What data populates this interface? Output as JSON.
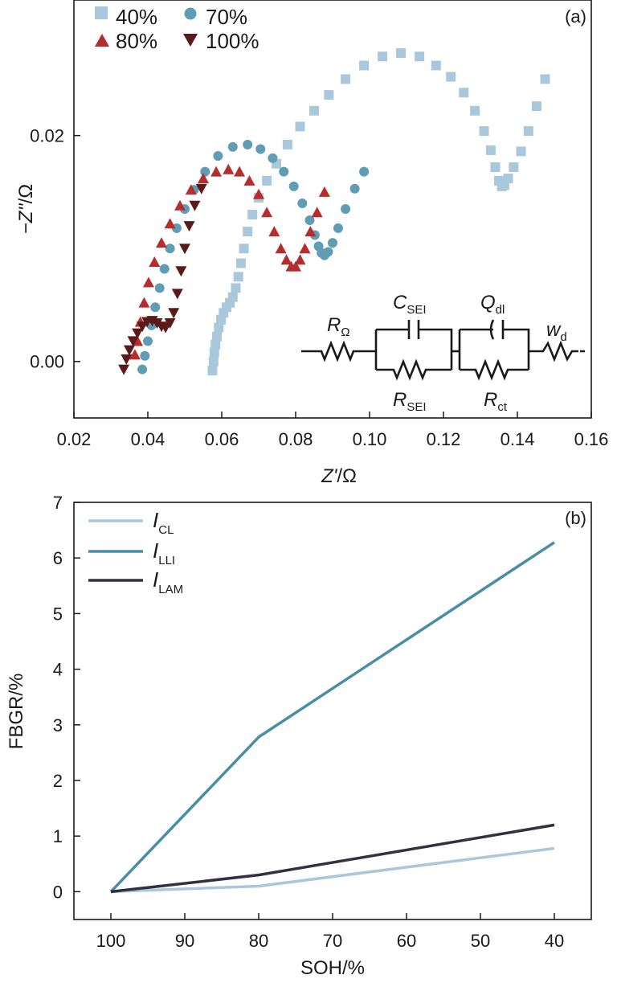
{
  "chart_data": [
    {
      "id": "a",
      "type": "scatter",
      "panel_label": "(a)",
      "xlabel_main": "Z'",
      "xlabel_unit": "/Ω",
      "ylabel_main": "−Z''",
      "ylabel_unit": "/Ω",
      "xlim": [
        0.02,
        0.16
      ],
      "ylim": [
        -0.005,
        0.032
      ],
      "xticks": [
        0.02,
        0.04,
        0.06,
        0.08,
        0.1,
        0.12,
        0.14,
        0.16
      ],
      "xtick_labels": [
        "0.02",
        "0.04",
        "0.06",
        "0.08",
        "0.10",
        "0.12",
        "0.14",
        "0.16"
      ],
      "yticks": [
        0.0,
        0.02
      ],
      "ytick_labels": [
        "0.00",
        "0.02"
      ],
      "legend_placement": "top-left",
      "series": [
        {
          "name": "40%",
          "marker": "square",
          "color": "#a9c8dc",
          "points": [
            [
              0.0575,
              -0.0008
            ],
            [
              0.0578,
              0.0
            ],
            [
              0.058,
              0.0008
            ],
            [
              0.0583,
              0.0015
            ],
            [
              0.0587,
              0.0022
            ],
            [
              0.0592,
              0.003
            ],
            [
              0.0598,
              0.0037
            ],
            [
              0.0605,
              0.0043
            ],
            [
              0.0613,
              0.0048
            ],
            [
              0.0622,
              0.0052
            ],
            [
              0.063,
              0.0057
            ],
            [
              0.0638,
              0.0065
            ],
            [
              0.0645,
              0.0075
            ],
            [
              0.0652,
              0.0087
            ],
            [
              0.066,
              0.01
            ],
            [
              0.067,
              0.0115
            ],
            [
              0.0683,
              0.013
            ],
            [
              0.07,
              0.0145
            ],
            [
              0.0722,
              0.016
            ],
            [
              0.0748,
              0.0175
            ],
            [
              0.0778,
              0.0192
            ],
            [
              0.0812,
              0.0208
            ],
            [
              0.085,
              0.0222
            ],
            [
              0.089,
              0.0236
            ],
            [
              0.0935,
              0.025
            ],
            [
              0.0985,
              0.0262
            ],
            [
              0.1035,
              0.027
            ],
            [
              0.1085,
              0.0273
            ],
            [
              0.1135,
              0.027
            ],
            [
              0.118,
              0.0262
            ],
            [
              0.122,
              0.0252
            ],
            [
              0.1255,
              0.0238
            ],
            [
              0.1285,
              0.0222
            ],
            [
              0.131,
              0.0204
            ],
            [
              0.1328,
              0.0187
            ],
            [
              0.134,
              0.0172
            ],
            [
              0.135,
              0.016
            ],
            [
              0.1358,
              0.0155
            ],
            [
              0.1365,
              0.0156
            ],
            [
              0.1375,
              0.0162
            ],
            [
              0.139,
              0.0172
            ],
            [
              0.141,
              0.0186
            ],
            [
              0.143,
              0.0204
            ],
            [
              0.1452,
              0.0226
            ],
            [
              0.1475,
              0.025
            ]
          ]
        },
        {
          "name": "70%",
          "marker": "circle",
          "color": "#5f9db5",
          "points": [
            [
              0.0385,
              -0.0007
            ],
            [
              0.0392,
              0.0005
            ],
            [
              0.04,
              0.0018
            ],
            [
              0.041,
              0.0032
            ],
            [
              0.042,
              0.0048
            ],
            [
              0.0432,
              0.0065
            ],
            [
              0.0445,
              0.0082
            ],
            [
              0.046,
              0.01
            ],
            [
              0.0478,
              0.0118
            ],
            [
              0.05,
              0.0135
            ],
            [
              0.0525,
              0.0152
            ],
            [
              0.0555,
              0.0168
            ],
            [
              0.059,
              0.0182
            ],
            [
              0.063,
              0.019
            ],
            [
              0.067,
              0.0192
            ],
            [
              0.0705,
              0.0188
            ],
            [
              0.0738,
              0.018
            ],
            [
              0.0768,
              0.0168
            ],
            [
              0.0795,
              0.0155
            ],
            [
              0.0818,
              0.014
            ],
            [
              0.0838,
              0.0125
            ],
            [
              0.0852,
              0.0112
            ],
            [
              0.0862,
              0.0102
            ],
            [
              0.087,
              0.0096
            ],
            [
              0.0878,
              0.0094
            ],
            [
              0.0888,
              0.0097
            ],
            [
              0.09,
              0.0105
            ],
            [
              0.0915,
              0.0118
            ],
            [
              0.0935,
              0.0135
            ],
            [
              0.096,
              0.0153
            ],
            [
              0.0985,
              0.0168
            ]
          ]
        },
        {
          "name": "80%",
          "marker": "triangle-up",
          "color": "#b52d2d",
          "points": [
            [
              0.0365,
              0.0006
            ],
            [
              0.0372,
              0.0018
            ],
            [
              0.038,
              0.0035
            ],
            [
              0.039,
              0.0052
            ],
            [
              0.0402,
              0.007
            ],
            [
              0.0418,
              0.0088
            ],
            [
              0.0437,
              0.0105
            ],
            [
              0.046,
              0.0122
            ],
            [
              0.0487,
              0.0138
            ],
            [
              0.0517,
              0.0152
            ],
            [
              0.055,
              0.0162
            ],
            [
              0.0585,
              0.0168
            ],
            [
              0.0618,
              0.017
            ],
            [
              0.0648,
              0.0168
            ],
            [
              0.0675,
              0.016
            ],
            [
              0.07,
              0.0148
            ],
            [
              0.0722,
              0.0132
            ],
            [
              0.0742,
              0.0115
            ],
            [
              0.076,
              0.01
            ],
            [
              0.0775,
              0.009
            ],
            [
              0.0788,
              0.0084
            ],
            [
              0.08,
              0.0084
            ],
            [
              0.0812,
              0.009
            ],
            [
              0.0825,
              0.01
            ],
            [
              0.084,
              0.0115
            ],
            [
              0.0858,
              0.0132
            ],
            [
              0.0878,
              0.015
            ]
          ]
        },
        {
          "name": "100%",
          "marker": "triangle-down",
          "color": "#5a1a1a",
          "points": [
            [
              0.0335,
              -0.0007
            ],
            [
              0.0342,
              0.0002
            ],
            [
              0.035,
              0.001
            ],
            [
              0.036,
              0.0018
            ],
            [
              0.0372,
              0.0025
            ],
            [
              0.0385,
              0.0031
            ],
            [
              0.0398,
              0.0035
            ],
            [
              0.0412,
              0.0036
            ],
            [
              0.0425,
              0.0034
            ],
            [
              0.0437,
              0.0031
            ],
            [
              0.0448,
              0.003
            ],
            [
              0.046,
              0.0034
            ],
            [
              0.047,
              0.0043
            ],
            [
              0.048,
              0.006
            ],
            [
              0.049,
              0.008
            ],
            [
              0.05,
              0.01
            ],
            [
              0.0512,
              0.012
            ],
            [
              0.0527,
              0.0138
            ],
            [
              0.0545,
              0.0153
            ]
          ]
        }
      ],
      "circuit": {
        "r_omega": "Ω",
        "r_main": "R",
        "c_sei_main": "C",
        "c_sei_sub": "SEI",
        "q_dl_main": "Q",
        "q_dl_sub": "dl",
        "w_main": "w",
        "w_sub": "d",
        "r_sei_main": "R",
        "r_sei_sub": "SEI",
        "r_ct_main": "R",
        "r_ct_sub": "ct"
      }
    },
    {
      "id": "b",
      "type": "line",
      "panel_label": "(b)",
      "xlabel": "SOH/%",
      "ylabel": "FBGR/%",
      "xlim": [
        105,
        35
      ],
      "ylim": [
        -0.5,
        7
      ],
      "xticks": [
        100,
        90,
        80,
        70,
        60,
        50,
        40
      ],
      "xtick_labels": [
        "100",
        "90",
        "80",
        "70",
        "60",
        "50",
        "40"
      ],
      "yticks": [
        0,
        1,
        2,
        3,
        4,
        5,
        6,
        7
      ],
      "ytick_labels": [
        "0",
        "1",
        "2",
        "3",
        "4",
        "5",
        "6",
        "7"
      ],
      "legend_placement": "top-left",
      "x": [
        100,
        80,
        40
      ],
      "series": [
        {
          "main": "I",
          "sub": "CL",
          "color": "#a9c8dc",
          "values": [
            0.0,
            0.1,
            0.78
          ]
        },
        {
          "main": "I",
          "sub": "LLI",
          "color": "#4a8ea6",
          "values": [
            0.0,
            2.78,
            6.28
          ]
        },
        {
          "main": "I",
          "sub": "LAM",
          "color": "#33303f",
          "values": [
            0.0,
            0.3,
            1.2
          ]
        }
      ]
    }
  ]
}
